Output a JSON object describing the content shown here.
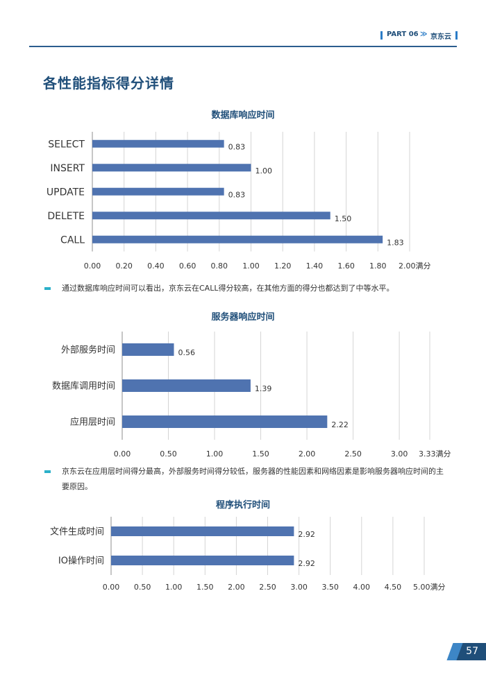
{
  "header": {
    "part_label": "PART 06",
    "chevron": "≫",
    "company": "京东云"
  },
  "page_title": "各性能指标得分详情",
  "notes": [
    "通过数据库响应时间可以看出，京东云在CALL得分较高，在其他方面的得分也都达到了中等水平。",
    "京东云在应用层时间得分最高，外部服务时间得分较低，服务器的性能因素和网络因素是影响服务器响应时间的主要原因。"
  ],
  "page_number": "57",
  "colors": {
    "bar": "#4f73b0",
    "accent": "#1f4e79",
    "note_marker": "#2bb0c9",
    "grid": "#d4d4d4"
  },
  "chart_data": [
    {
      "type": "bar",
      "orientation": "horizontal",
      "title": "数据库响应时间",
      "categories": [
        "SELECT",
        "INSERT",
        "UPDATE",
        "DELETE",
        "CALL"
      ],
      "values": [
        0.83,
        1.0,
        0.83,
        1.5,
        1.83
      ],
      "xlim": [
        0,
        2.0
      ],
      "xticks": [
        "0.00",
        "0.20",
        "0.40",
        "0.60",
        "0.80",
        "1.00",
        "1.20",
        "1.40",
        "1.60",
        "1.80",
        "2.00满分"
      ],
      "grid": true
    },
    {
      "type": "bar",
      "orientation": "horizontal",
      "title": "服务器响应时间",
      "categories": [
        "外部服务时间",
        "数据库调用时间",
        "应用层时间"
      ],
      "values": [
        0.56,
        1.39,
        2.22
      ],
      "xlim": [
        0,
        3.33
      ],
      "xticks": [
        "0.00",
        "0.50",
        "1.00",
        "1.50",
        "2.00",
        "2.50",
        "3.00",
        "3.33满分"
      ],
      "grid": true
    },
    {
      "type": "bar",
      "orientation": "horizontal",
      "title": "程序执行时间",
      "categories": [
        "文件生成时间",
        "IO操作时间"
      ],
      "values": [
        2.92,
        2.92
      ],
      "xlim": [
        0,
        5.0
      ],
      "xticks": [
        "0.00",
        "0.50",
        "1.00",
        "1.50",
        "2.00",
        "2.50",
        "3.00",
        "3.50",
        "4.00",
        "4.50",
        "5.00满分"
      ],
      "grid": true
    }
  ]
}
